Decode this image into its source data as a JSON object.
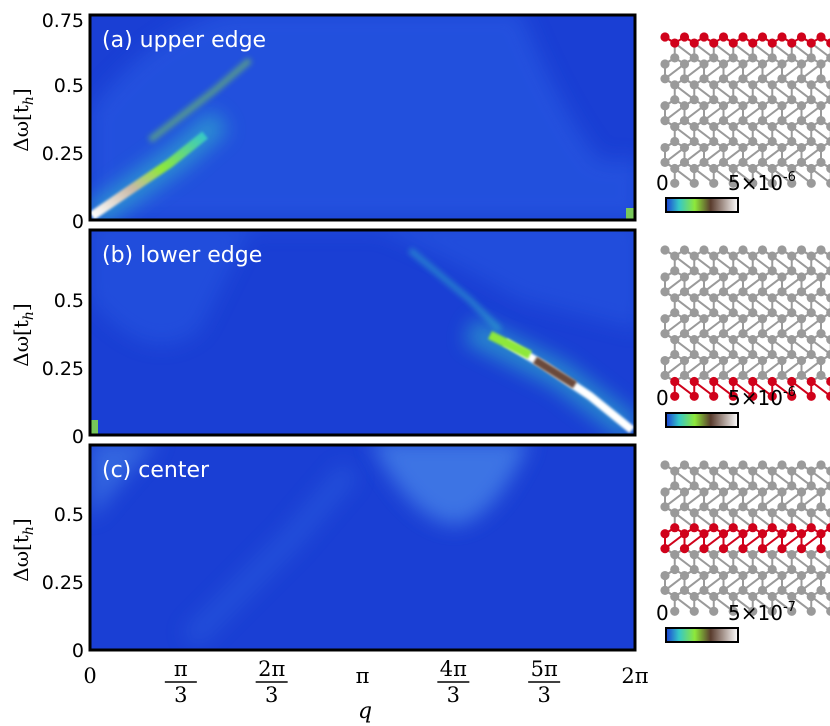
{
  "chart_data": [
    {
      "type": "heatmap",
      "title": "(a) upper edge",
      "ylabel": "Δω[t_h]",
      "xlabel": "",
      "xlim": [
        0,
        6.2832
      ],
      "ylim": [
        0,
        0.75
      ],
      "yticks": [
        "0",
        "0.25",
        "0.5",
        "0.75"
      ],
      "colorbar": {
        "min_label": "0",
        "max_label": "5×10",
        "exponent": "-6"
      },
      "bright_features": [
        {
          "kind": "edge mode",
          "q_start": 0.0,
          "w_start": 0.0,
          "q_end": 1.1,
          "w_end": 0.3,
          "peak_q": 0.9,
          "peak_w": 0.22
        }
      ],
      "continuum_boundary": "arc from q≈0.5 up to 0.75 near q≈π/3, decaying to ~0.1 near q≈5π/3"
    },
    {
      "type": "heatmap",
      "title": "(b) lower edge",
      "ylabel": "Δω[t_h]",
      "xlabel": "",
      "xlim": [
        0,
        6.2832
      ],
      "ylim": [
        0,
        0.75
      ],
      "yticks": [
        "0",
        "0.25",
        "0.5"
      ],
      "colorbar": {
        "min_label": "0",
        "max_label": "5×10",
        "exponent": "-6"
      },
      "bright_features": [
        {
          "kind": "edge mode",
          "q_start": 3.9,
          "w_start": 0.6,
          "q_end": 6.2832,
          "w_end": 0.0,
          "peak_q": 5.3,
          "peak_w": 0.22
        }
      ],
      "continuum_boundary": "mirror of (a): ~0.1 near q≈π/3 rising to 0.75 near 5π/3"
    },
    {
      "type": "heatmap",
      "title": "(c) center",
      "ylabel": "Δω[t_h]",
      "xlabel": "q",
      "xlim": [
        0,
        6.2832
      ],
      "ylim": [
        0,
        0.75
      ],
      "yticks": [
        "0",
        "0.25",
        "0.5"
      ],
      "xticks": [
        "0",
        "π/3",
        "2π/3",
        "π",
        "4π/3",
        "5π/3",
        "2π"
      ],
      "colorbar": {
        "min_label": "0",
        "max_label": "5×10",
        "exponent": "-7"
      },
      "bright_features": [
        {
          "kind": "continuum bump",
          "q_center": 3.85,
          "w_min": 0.47
        }
      ]
    }
  ],
  "axis": {
    "ylabel_main": "Δω[t",
    "ylabel_sub": "h",
    "ylabel_close": "]",
    "xlabel": "q",
    "x_ticks": [
      {
        "num": "0",
        "den": ""
      },
      {
        "num": "π",
        "den": "3"
      },
      {
        "num": "2π",
        "den": "3"
      },
      {
        "num": "π",
        "den": ""
      },
      {
        "num": "4π",
        "den": "3"
      },
      {
        "num": "5π",
        "den": "3"
      },
      {
        "num": "2π",
        "den": ""
      }
    ]
  },
  "colors": {
    "background": "#1a3fd4",
    "highlight_red": "#d0021b",
    "lattice_gray": "#9a9a9a",
    "colormap": [
      "#1a3fd4",
      "#35c8c8",
      "#8ee83a",
      "#5a3c2e",
      "#ffffff"
    ]
  }
}
